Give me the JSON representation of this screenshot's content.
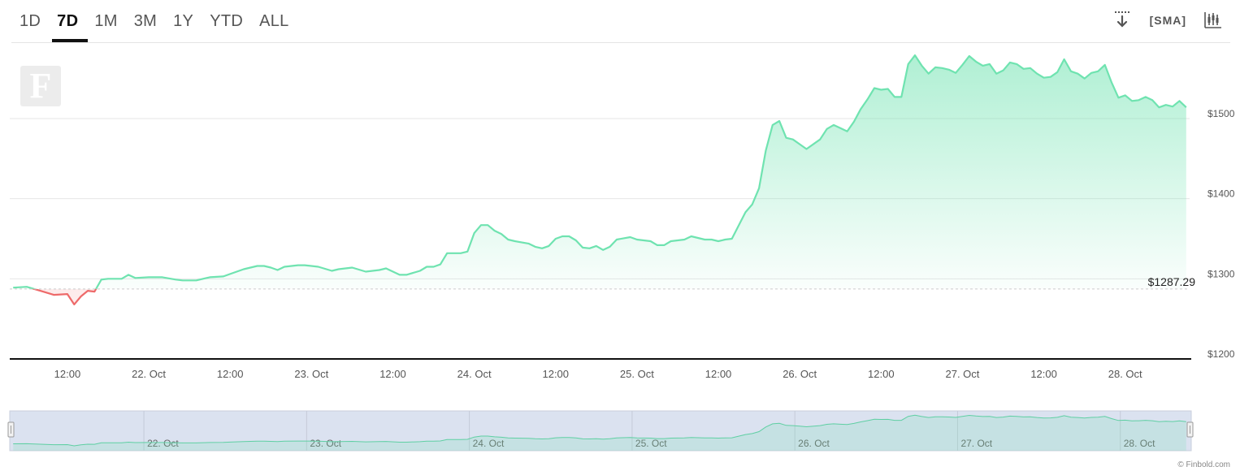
{
  "ranges": {
    "items": [
      "1D",
      "7D",
      "1M",
      "3M",
      "1Y",
      "YTD",
      "ALL"
    ],
    "active": "7D"
  },
  "toolbar": {
    "download_icon": "download-icon",
    "sma_label": "[SMA]",
    "candles_icon": "candlestick-icon"
  },
  "credit": "© Finbold.com",
  "colors": {
    "up_line": "#6fe3b0",
    "down_line": "#ee6a6a",
    "navigator_fill": "#dbe2f0",
    "baseline": "#cccccc"
  },
  "chart_data": {
    "type": "area",
    "currency": "$",
    "baseline_value": 1287.29,
    "baseline_label": "$1287.29",
    "xlim": [
      0,
      174
    ],
    "ylim": [
      1200,
      1620
    ],
    "yticks": [
      1200,
      1300,
      1400,
      1500
    ],
    "ytick_labels": [
      "$1200",
      "$1300",
      "$1400",
      "$1500"
    ],
    "xticks": [
      {
        "t": 8.5,
        "label": "12:00"
      },
      {
        "t": 20.5,
        "label": "22. Oct"
      },
      {
        "t": 32.5,
        "label": "12:00"
      },
      {
        "t": 44.5,
        "label": "23. Oct"
      },
      {
        "t": 56.5,
        "label": "12:00"
      },
      {
        "t": 68.5,
        "label": "24. Oct"
      },
      {
        "t": 80.5,
        "label": "12:00"
      },
      {
        "t": 92.5,
        "label": "25. Oct"
      },
      {
        "t": 104.5,
        "label": "12:00"
      },
      {
        "t": 116.5,
        "label": "26. Oct"
      },
      {
        "t": 128.5,
        "label": "12:00"
      },
      {
        "t": 140.5,
        "label": "27. Oct"
      },
      {
        "t": 152.5,
        "label": "12:00"
      },
      {
        "t": 164.5,
        "label": "28. Oct"
      }
    ],
    "navigator_labels": [
      {
        "t": 20.5,
        "label": "22. Oct"
      },
      {
        "t": 44.5,
        "label": "23. Oct"
      },
      {
        "t": 68.5,
        "label": "24. Oct"
      },
      {
        "t": 92.5,
        "label": "25. Oct"
      },
      {
        "t": 116.5,
        "label": "26. Oct"
      },
      {
        "t": 140.5,
        "label": "27. Oct"
      },
      {
        "t": 164.5,
        "label": "28. Oct"
      }
    ],
    "series": [
      {
        "points": [
          [
            0.5,
            1289
          ],
          [
            2.5,
            1290
          ],
          [
            4.5,
            1285
          ],
          [
            6.5,
            1280
          ],
          [
            8.5,
            1281
          ],
          [
            9.5,
            1268
          ],
          [
            10.5,
            1278
          ],
          [
            11.5,
            1285
          ],
          [
            12.5,
            1284
          ],
          [
            13.5,
            1299
          ],
          [
            14.5,
            1300
          ],
          [
            16.5,
            1300
          ],
          [
            17.5,
            1305
          ],
          [
            18.5,
            1301
          ],
          [
            20.5,
            1302
          ],
          [
            22.5,
            1302
          ],
          [
            24.5,
            1299
          ],
          [
            25.5,
            1298
          ],
          [
            27.5,
            1298
          ],
          [
            29.5,
            1302
          ],
          [
            31.5,
            1303
          ],
          [
            32.5,
            1306
          ],
          [
            34.5,
            1312
          ],
          [
            36.5,
            1316
          ],
          [
            37.5,
            1316
          ],
          [
            38.5,
            1314
          ],
          [
            39.5,
            1311
          ],
          [
            40.5,
            1315
          ],
          [
            42.5,
            1317
          ],
          [
            43.5,
            1317
          ],
          [
            45.5,
            1315
          ],
          [
            47.5,
            1310
          ],
          [
            48.5,
            1312
          ],
          [
            50.5,
            1314
          ],
          [
            52.5,
            1309
          ],
          [
            54.5,
            1311
          ],
          [
            55.5,
            1313
          ],
          [
            57.5,
            1305
          ],
          [
            58.5,
            1305
          ],
          [
            60.5,
            1310
          ],
          [
            61.5,
            1315
          ],
          [
            62.5,
            1315
          ],
          [
            63.5,
            1318
          ],
          [
            64.5,
            1332
          ],
          [
            66.5,
            1332
          ],
          [
            67.5,
            1334
          ],
          [
            68.5,
            1357
          ],
          [
            69.5,
            1367
          ],
          [
            70.5,
            1367
          ],
          [
            71.5,
            1360
          ],
          [
            72.5,
            1356
          ],
          [
            73.5,
            1349
          ],
          [
            74.5,
            1347
          ],
          [
            76.5,
            1344
          ],
          [
            77.5,
            1340
          ],
          [
            78.5,
            1338
          ],
          [
            79.5,
            1341
          ],
          [
            80.5,
            1350
          ],
          [
            81.5,
            1353
          ],
          [
            82.5,
            1353
          ],
          [
            83.5,
            1348
          ],
          [
            84.5,
            1339
          ],
          [
            85.5,
            1338
          ],
          [
            86.5,
            1341
          ],
          [
            87.5,
            1336
          ],
          [
            88.5,
            1340
          ],
          [
            89.5,
            1349
          ],
          [
            91.5,
            1352
          ],
          [
            92.5,
            1349
          ],
          [
            94.5,
            1347
          ],
          [
            95.5,
            1342
          ],
          [
            96.5,
            1342
          ],
          [
            97.5,
            1347
          ],
          [
            99.5,
            1349
          ],
          [
            100.5,
            1353
          ],
          [
            102.5,
            1349
          ],
          [
            103.5,
            1349
          ],
          [
            104.5,
            1347
          ],
          [
            105.5,
            1349
          ],
          [
            106.5,
            1350
          ],
          [
            108.5,
            1383
          ],
          [
            109.5,
            1393
          ],
          [
            110.5,
            1413
          ],
          [
            111.5,
            1460
          ],
          [
            112.5,
            1492
          ],
          [
            113.5,
            1497
          ],
          [
            114.5,
            1476
          ],
          [
            115.5,
            1474
          ],
          [
            116.5,
            1468
          ],
          [
            117.5,
            1462
          ],
          [
            119.5,
            1474
          ],
          [
            120.5,
            1487
          ],
          [
            121.5,
            1492
          ],
          [
            122.5,
            1488
          ],
          [
            123.5,
            1484
          ],
          [
            124.5,
            1496
          ],
          [
            125.5,
            1512
          ],
          [
            126.5,
            1524
          ],
          [
            127.5,
            1538
          ],
          [
            128.5,
            1536
          ],
          [
            129.5,
            1537
          ],
          [
            130.5,
            1527
          ],
          [
            131.5,
            1527
          ],
          [
            132.5,
            1568
          ],
          [
            133.5,
            1579
          ],
          [
            134.5,
            1566
          ],
          [
            135.5,
            1556
          ],
          [
            136.5,
            1564
          ],
          [
            137.5,
            1563
          ],
          [
            138.5,
            1561
          ],
          [
            139.5,
            1557
          ],
          [
            140.5,
            1567
          ],
          [
            141.5,
            1578
          ],
          [
            142.5,
            1571
          ],
          [
            143.5,
            1566
          ],
          [
            144.5,
            1568
          ],
          [
            145.5,
            1556
          ],
          [
            146.5,
            1560
          ],
          [
            147.5,
            1570
          ],
          [
            148.5,
            1568
          ],
          [
            149.5,
            1562
          ],
          [
            150.5,
            1563
          ],
          [
            151.5,
            1556
          ],
          [
            152.5,
            1551
          ],
          [
            153.5,
            1552
          ],
          [
            154.5,
            1558
          ],
          [
            155.5,
            1574
          ],
          [
            156.5,
            1559
          ],
          [
            157.5,
            1556
          ],
          [
            158.5,
            1550
          ],
          [
            159.5,
            1557
          ],
          [
            160.5,
            1559
          ],
          [
            161.5,
            1567
          ],
          [
            162.5,
            1545
          ],
          [
            163.5,
            1526
          ],
          [
            164.5,
            1529
          ],
          [
            165.5,
            1522
          ],
          [
            166.5,
            1523
          ],
          [
            167.5,
            1527
          ],
          [
            168.5,
            1523
          ],
          [
            169.5,
            1514
          ],
          [
            170.5,
            1517
          ],
          [
            171.5,
            1515
          ],
          [
            172.5,
            1522
          ],
          [
            173.5,
            1514
          ]
        ]
      }
    ]
  }
}
